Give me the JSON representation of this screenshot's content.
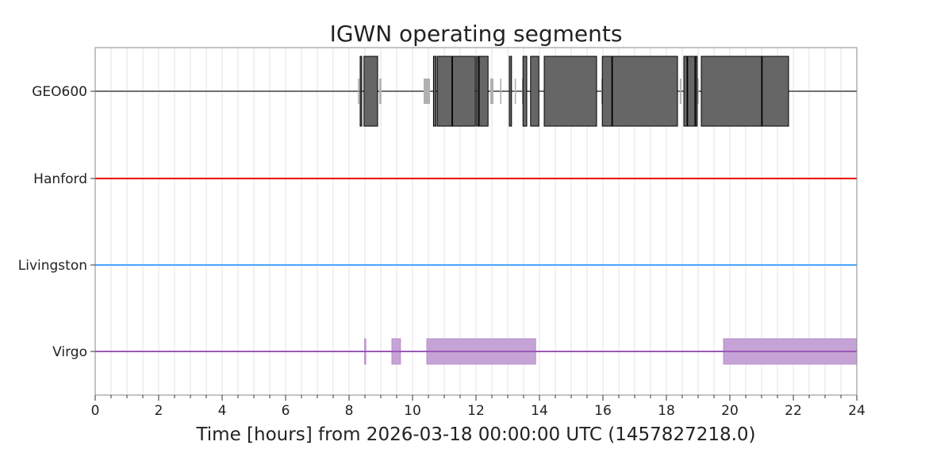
{
  "chart_data": {
    "type": "segments",
    "title": "IGWN operating segments",
    "xlabel": "Time [hours] from 2026-03-18 00:00:00 UTC (1457827218.0)",
    "ylabel": "",
    "xlim": [
      0,
      24
    ],
    "xticks": [
      0,
      2,
      4,
      6,
      8,
      10,
      12,
      14,
      16,
      18,
      20,
      22,
      24
    ],
    "xtick_labels": [
      "0",
      "2",
      "4",
      "6",
      "8",
      "10",
      "12",
      "14",
      "16",
      "18",
      "20",
      "22",
      "24"
    ],
    "grid": "vertical minor lines every 0.5 h",
    "rows": [
      {
        "label": "GEO600",
        "color": "#707070",
        "active_color": "#666666",
        "known_color": "#b0b0b0",
        "known_segments": [
          [
            8.28,
            8.32
          ],
          [
            8.95,
            9.02
          ],
          [
            10.35,
            10.55
          ],
          [
            12.45,
            12.55
          ],
          [
            12.76,
            12.8
          ],
          [
            13.22,
            13.26
          ],
          [
            13.45,
            13.5
          ],
          [
            15.95,
            16.0
          ],
          [
            18.42,
            18.47
          ],
          [
            18.98,
            19.02
          ]
        ],
        "active_segments": [
          [
            8.35,
            8.4
          ],
          [
            8.47,
            8.9
          ],
          [
            10.66,
            10.74
          ],
          [
            10.78,
            11.24
          ],
          [
            11.26,
            11.98
          ],
          [
            12.02,
            12.08
          ],
          [
            12.1,
            12.38
          ],
          [
            13.05,
            13.12
          ],
          [
            13.48,
            13.6
          ],
          [
            13.72,
            13.98
          ],
          [
            14.15,
            15.8
          ],
          [
            15.98,
            16.28
          ],
          [
            16.3,
            18.35
          ],
          [
            18.55,
            18.65
          ],
          [
            18.67,
            18.9
          ],
          [
            18.92,
            18.97
          ],
          [
            19.1,
            21.0
          ],
          [
            21.02,
            21.85
          ]
        ]
      },
      {
        "label": "Hanford",
        "color": "#ee0000",
        "active_segments": []
      },
      {
        "label": "Livingston",
        "color": "#4ba6ff",
        "active_segments": []
      },
      {
        "label": "Virgo",
        "color": "#9b59b6",
        "fill": "#c5a3d6",
        "active_segments": [
          [
            8.49,
            8.52
          ],
          [
            9.35,
            9.62
          ],
          [
            10.45,
            13.88
          ],
          [
            19.8,
            24.0
          ]
        ]
      }
    ]
  }
}
